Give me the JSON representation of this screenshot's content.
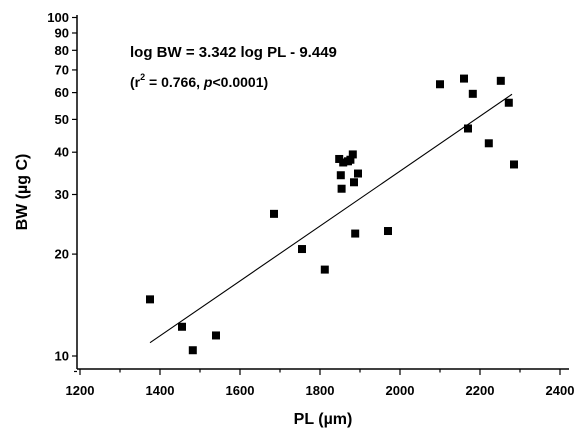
{
  "chart_data": {
    "type": "scatter",
    "xlabel": "PL (µm)",
    "ylabel": "BW (µg C)",
    "x_ticks": [
      "1200",
      "1400",
      "1600",
      "1800",
      "2000",
      "2200",
      "2400"
    ],
    "y_ticks": [
      "10",
      "20",
      "30",
      "40",
      "50",
      "60",
      "70",
      "80",
      "90",
      "100"
    ],
    "xlim": [
      1200,
      2450
    ],
    "ylim": [
      9,
      100
    ],
    "y_scale": "log",
    "grid": false,
    "annotation": {
      "equation": "log BW = 3.342 log PL - 9.449",
      "stats_open": "(r",
      "stats_sup": "2",
      "stats_mid": " = 0.766, ",
      "stats_p": "p",
      "stats_close": "<0.0001)"
    },
    "fit_line": {
      "slope": 3.342,
      "intercept": -9.449,
      "x_range": [
        1375,
        2280
      ]
    },
    "points": [
      {
        "x": 1375,
        "y": 14.7
      },
      {
        "x": 1455,
        "y": 12.2
      },
      {
        "x": 1482,
        "y": 10.4
      },
      {
        "x": 1540,
        "y": 11.5
      },
      {
        "x": 1685,
        "y": 26.3
      },
      {
        "x": 1755,
        "y": 20.7
      },
      {
        "x": 1812,
        "y": 18.0
      },
      {
        "x": 1848,
        "y": 38.2
      },
      {
        "x": 1852,
        "y": 34.2
      },
      {
        "x": 1854,
        "y": 31.2
      },
      {
        "x": 1858,
        "y": 37.3
      },
      {
        "x": 1870,
        "y": 37.6
      },
      {
        "x": 1876,
        "y": 38.0
      },
      {
        "x": 1882,
        "y": 39.4
      },
      {
        "x": 1885,
        "y": 32.6
      },
      {
        "x": 1888,
        "y": 23.0
      },
      {
        "x": 1895,
        "y": 34.6
      },
      {
        "x": 1970,
        "y": 23.4
      },
      {
        "x": 2100,
        "y": 63.5
      },
      {
        "x": 2160,
        "y": 66.0
      },
      {
        "x": 2170,
        "y": 47.0
      },
      {
        "x": 2182,
        "y": 59.5
      },
      {
        "x": 2222,
        "y": 42.5
      },
      {
        "x": 2252,
        "y": 65.0
      },
      {
        "x": 2272,
        "y": 56.0
      },
      {
        "x": 2285,
        "y": 36.8
      }
    ]
  }
}
